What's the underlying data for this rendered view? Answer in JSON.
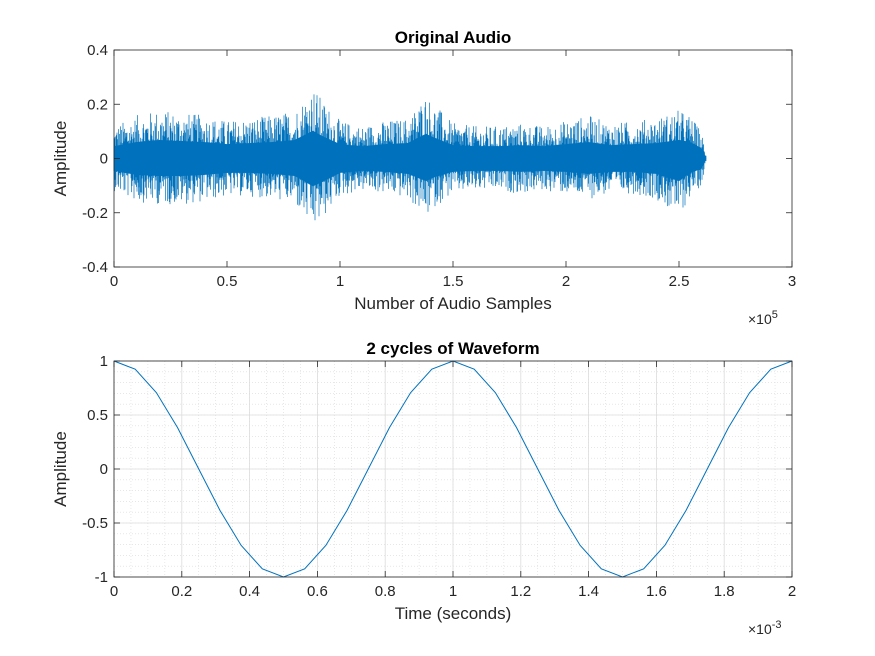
{
  "chart_data": [
    {
      "type": "line",
      "title": "Original Audio",
      "xlabel": "Number of Audio Samples",
      "ylabel": "Amplitude",
      "xlim": [
        0,
        300000
      ],
      "ylim": [
        -0.4,
        0.4
      ],
      "x_ticks": [
        0,
        50000,
        100000,
        150000,
        200000,
        250000,
        300000
      ],
      "x_tick_labels": [
        "0",
        "0.5",
        "1",
        "1.5",
        "2",
        "2.5",
        "3"
      ],
      "y_ticks": [
        -0.4,
        -0.2,
        0,
        0.2,
        0.4
      ],
      "y_tick_labels": [
        "-0.4",
        "-0.2",
        "0",
        "0.2",
        "0.4"
      ],
      "x_exponent": "×10^5",
      "x_exponent_base": "×10",
      "x_exponent_power": "5",
      "grid": false,
      "sample_count": 262000,
      "envelope": {
        "x": [
          0,
          10000,
          20000,
          30000,
          40000,
          50000,
          60000,
          70000,
          80000,
          88000,
          92000,
          100000,
          110000,
          120000,
          130000,
          138000,
          142000,
          150000,
          160000,
          170000,
          180000,
          190000,
          200000,
          210000,
          220000,
          230000,
          240000,
          250000,
          255000,
          260000,
          262000
        ],
        "max": [
          0.12,
          0.16,
          0.18,
          0.17,
          0.16,
          0.14,
          0.15,
          0.16,
          0.18,
          0.27,
          0.22,
          0.14,
          0.12,
          0.14,
          0.15,
          0.24,
          0.2,
          0.13,
          0.12,
          0.12,
          0.13,
          0.12,
          0.14,
          0.16,
          0.13,
          0.14,
          0.15,
          0.18,
          0.16,
          0.1,
          0.01
        ],
        "min": [
          -0.12,
          -0.16,
          -0.17,
          -0.17,
          -0.16,
          -0.14,
          -0.14,
          -0.15,
          -0.17,
          -0.27,
          -0.23,
          -0.14,
          -0.12,
          -0.13,
          -0.15,
          -0.22,
          -0.18,
          -0.13,
          -0.12,
          -0.12,
          -0.13,
          -0.12,
          -0.13,
          -0.15,
          -0.13,
          -0.13,
          -0.15,
          -0.22,
          -0.14,
          -0.1,
          -0.01
        ]
      },
      "series_color": "#0072BD"
    },
    {
      "type": "line",
      "title": "2 cycles of Waveform",
      "xlabel": "Time (seconds)",
      "ylabel": "Amplitude",
      "xlim": [
        0,
        0.002
      ],
      "ylim": [
        -1,
        1
      ],
      "x_ticks": [
        0,
        0.0002,
        0.0004,
        0.0006,
        0.0008,
        0.001,
        0.0012,
        0.0014,
        0.0016,
        0.0018,
        0.002
      ],
      "x_tick_labels": [
        "0",
        "0.2",
        "0.4",
        "0.6",
        "0.8",
        "1",
        "1.2",
        "1.4",
        "1.6",
        "1.8",
        "2"
      ],
      "y_ticks": [
        -1,
        -0.5,
        0,
        0.5,
        1
      ],
      "y_tick_labels": [
        "-1",
        "-0.5",
        "0",
        "0.5",
        "1"
      ],
      "x_exponent": "×10^-3",
      "x_exponent_base": "×10",
      "x_exponent_power": "-3",
      "grid": true,
      "minor_grid": true,
      "x": [
        0,
        6.25e-05,
        0.000125,
        0.0001875,
        0.00025,
        0.0003125,
        0.000375,
        0.0004375,
        0.0005,
        0.0005625,
        0.000625,
        0.0006875,
        0.00075,
        0.0008125,
        0.000875,
        0.0009375,
        0.001,
        0.0010625,
        0.001125,
        0.0011875,
        0.00125,
        0.0013125,
        0.001375,
        0.0014375,
        0.0015,
        0.0015625,
        0.001625,
        0.0016875,
        0.00175,
        0.0018125,
        0.001875,
        0.0019375,
        0.002
      ],
      "y": [
        1,
        0.924,
        0.707,
        0.383,
        0,
        -0.383,
        -0.707,
        -0.924,
        -1,
        -0.924,
        -0.707,
        -0.383,
        0,
        0.383,
        0.707,
        0.924,
        1,
        0.924,
        0.707,
        0.383,
        0,
        -0.383,
        -0.707,
        -0.924,
        -1,
        -0.924,
        -0.707,
        -0.383,
        0,
        0.383,
        0.707,
        0.924,
        1
      ],
      "series_color": "#0072BD"
    }
  ]
}
